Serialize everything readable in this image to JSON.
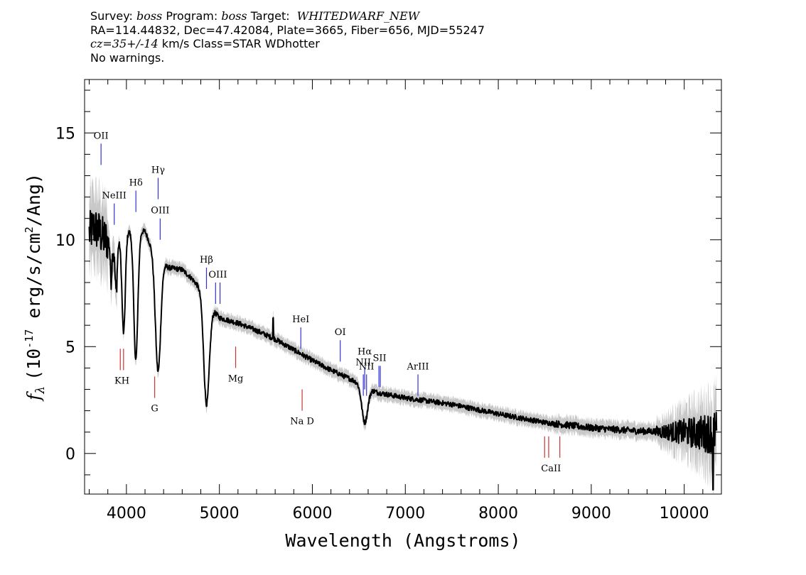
{
  "header": {
    "survey_prefix": "Survey: ",
    "survey": "boss",
    "program_prefix": " Program: ",
    "program": "boss",
    "target_prefix": " Target:  ",
    "target": "WHITEDWARF_NEW",
    "line2": "RA=114.44832, Dec=47.42084, Plate=3665, Fiber=656, MJD=55247",
    "cz_value": "cz=35+/-14",
    "cz_suffix": " km/s Class=STAR WDhotter",
    "line4": "No warnings."
  },
  "chart_data": {
    "type": "line",
    "xlabel": "Wavelength (Angstroms)",
    "ylabel_text": "(10",
    "ylabel_exp": "-17",
    "ylabel_units": " erg/s/cm",
    "ylabel_sq": "2",
    "ylabel_tail": "/Ang)",
    "ylabel_symbol": "f",
    "ylabel_sub": "λ",
    "xlim": [
      3550,
      10400
    ],
    "ylim": [
      -1.9,
      17.5
    ],
    "x_ticks": [
      4000,
      5000,
      6000,
      7000,
      8000,
      9000,
      10000
    ],
    "x_tick_labels": [
      "4000",
      "5000",
      "6000",
      "7000",
      "8000",
      "9000",
      "10000"
    ],
    "y_ticks": [
      0,
      5,
      10,
      15
    ],
    "y_tick_labels": [
      "0",
      "5",
      "10",
      "15"
    ],
    "continuum": [
      [
        3600,
        10.3
      ],
      [
        3650,
        10.6
      ],
      [
        3700,
        10.4
      ],
      [
        3750,
        10.1
      ],
      [
        3800,
        9.95
      ],
      [
        3850,
        9.6
      ],
      [
        4000,
        10.4
      ],
      [
        4200,
        10.4
      ],
      [
        4300,
        9.3
      ],
      [
        4450,
        8.7
      ],
      [
        4600,
        8.6
      ],
      [
        4700,
        8.2
      ],
      [
        4800,
        7.7
      ],
      [
        4900,
        6.9
      ],
      [
        5000,
        6.35
      ],
      [
        5200,
        6.1
      ],
      [
        5400,
        5.75
      ],
      [
        5600,
        5.35
      ],
      [
        5800,
        4.85
      ],
      [
        6000,
        4.35
      ],
      [
        6200,
        3.9
      ],
      [
        6400,
        3.5
      ],
      [
        6500,
        3.3
      ],
      [
        6700,
        2.85
      ],
      [
        7000,
        2.6
      ],
      [
        7500,
        2.3
      ],
      [
        8000,
        1.85
      ],
      [
        8500,
        1.45
      ],
      [
        9000,
        1.2
      ],
      [
        9500,
        1.05
      ],
      [
        10000,
        1.0
      ],
      [
        10200,
        0.95
      ],
      [
        10350,
        1.0
      ]
    ],
    "absorption_lines": [
      {
        "center": 3835,
        "depth": 1.6,
        "width": 8
      },
      {
        "center": 3889,
        "depth": 2.2,
        "width": 12
      },
      {
        "center": 3970,
        "depth": 4.6,
        "width": 18
      },
      {
        "center": 4101,
        "depth": 6.0,
        "width": 22
      },
      {
        "center": 4340,
        "depth": 5.3,
        "width": 28
      },
      {
        "center": 4861,
        "depth": 4.9,
        "width": 30
      },
      {
        "center": 6563,
        "depth": 1.7,
        "width": 32
      }
    ],
    "emission_lines": [
      {
        "label": "OII",
        "wavelengths": [
          3727
        ],
        "y_from": 13.5,
        "y_to": 14.5,
        "label_y": 14.6
      },
      {
        "label": "NeIII",
        "wavelengths": [
          3869
        ],
        "y_from": 10.7,
        "y_to": 11.7,
        "label_y": 11.8
      },
      {
        "label": "Hδ",
        "wavelengths": [
          4102
        ],
        "y_from": 11.3,
        "y_to": 12.3,
        "label_y": 12.4
      },
      {
        "label": "Hγ",
        "wavelengths": [
          4341
        ],
        "y_from": 11.9,
        "y_to": 12.9,
        "label_y": 13.0
      },
      {
        "label": "OIII",
        "wavelengths": [
          4363
        ],
        "y_from": 10.0,
        "y_to": 11.0,
        "label_y": 11.1
      },
      {
        "label": "Hβ",
        "wavelengths": [
          4861
        ],
        "y_from": 7.7,
        "y_to": 8.7,
        "label_y": 8.8
      },
      {
        "label": "OIII",
        "wavelengths": [
          4959,
          5007
        ],
        "y_from": 7.0,
        "y_to": 8.0,
        "label_y": 8.1
      },
      {
        "label": "HeI",
        "wavelengths": [
          5876
        ],
        "y_from": 4.9,
        "y_to": 5.9,
        "label_y": 6.0
      },
      {
        "label": "OI",
        "wavelengths": [
          6300
        ],
        "y_from": 4.3,
        "y_to": 5.3,
        "label_y": 5.4
      },
      {
        "label": "NII",
        "wavelengths": [
          6548
        ],
        "y_from": 2.7,
        "y_to": 3.7,
        "label_y": 4.0
      },
      {
        "label": "Hα",
        "wavelengths": [
          6563
        ],
        "y_from": 3.0,
        "y_to": 4.0,
        "label_y": 4.5
      },
      {
        "label": "NII",
        "wavelengths": [
          6583
        ],
        "y_from": 2.7,
        "y_to": 3.7,
        "label_y": 3.8
      },
      {
        "label": "SII",
        "wavelengths": [
          6716,
          6731
        ],
        "y_from": 3.1,
        "y_to": 4.1,
        "label_y": 4.2
      },
      {
        "label": "ArIII",
        "wavelengths": [
          7136
        ],
        "y_from": 2.7,
        "y_to": 3.7,
        "label_y": 3.8
      }
    ],
    "absorption_markers": [
      {
        "label": "KH",
        "wavelengths": [
          3934,
          3969
        ],
        "y_from": 3.9,
        "y_to": 4.9,
        "label_y": 3.6
      },
      {
        "label": "G",
        "wavelengths": [
          4304
        ],
        "y_from": 2.6,
        "y_to": 3.6,
        "label_y": 2.3
      },
      {
        "label": "Mg",
        "wavelengths": [
          5175
        ],
        "y_from": 4.0,
        "y_to": 5.0,
        "label_y": 3.7
      },
      {
        "label": "Na  D",
        "wavelengths": [
          5890
        ],
        "y_from": 2.0,
        "y_to": 3.0,
        "label_y": 1.7
      },
      {
        "label": "CaII",
        "wavelengths": [
          8498,
          8542,
          8662
        ],
        "y_from": -0.2,
        "y_to": 0.8,
        "label_y": -0.5
      }
    ],
    "colors": {
      "emission": "#3333cc",
      "absorption": "#cc3333",
      "spectrum": "#000000",
      "error": "#c8c8c8"
    }
  }
}
